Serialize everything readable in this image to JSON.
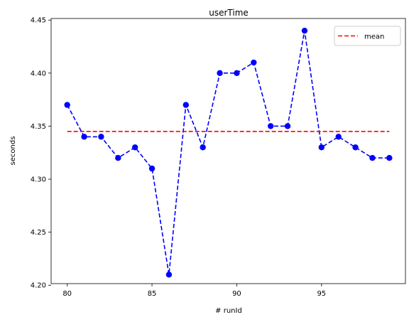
{
  "chart_data": {
    "type": "line",
    "title": "userTime",
    "xlabel": "# runId",
    "ylabel": "seconds",
    "xlim": [
      79.05,
      99.95
    ],
    "ylim": [
      4.2015,
      4.4515
    ],
    "x_ticks": [
      80,
      85,
      90,
      95
    ],
    "y_ticks": [
      4.2,
      4.25,
      4.3,
      4.35,
      4.4,
      4.45
    ],
    "legend_position": "top-right",
    "grid": false,
    "series": [
      {
        "style": "dashed line with circle markers",
        "color": "#0000ff",
        "x": [
          80,
          81,
          82,
          83,
          84,
          85,
          86,
          87,
          88,
          89,
          90,
          91,
          92,
          93,
          94,
          95,
          96,
          97,
          98,
          99
        ],
        "values": [
          4.37,
          4.34,
          4.34,
          4.32,
          4.33,
          4.31,
          4.21,
          4.37,
          4.33,
          4.4,
          4.4,
          4.41,
          4.35,
          4.35,
          4.44,
          4.33,
          4.34,
          4.33,
          4.32,
          4.32
        ]
      },
      {
        "name": "mean",
        "style": "dashed line",
        "color": "#ff0000",
        "x": [
          80,
          99
        ],
        "values": [
          4.345,
          4.345
        ]
      }
    ]
  }
}
